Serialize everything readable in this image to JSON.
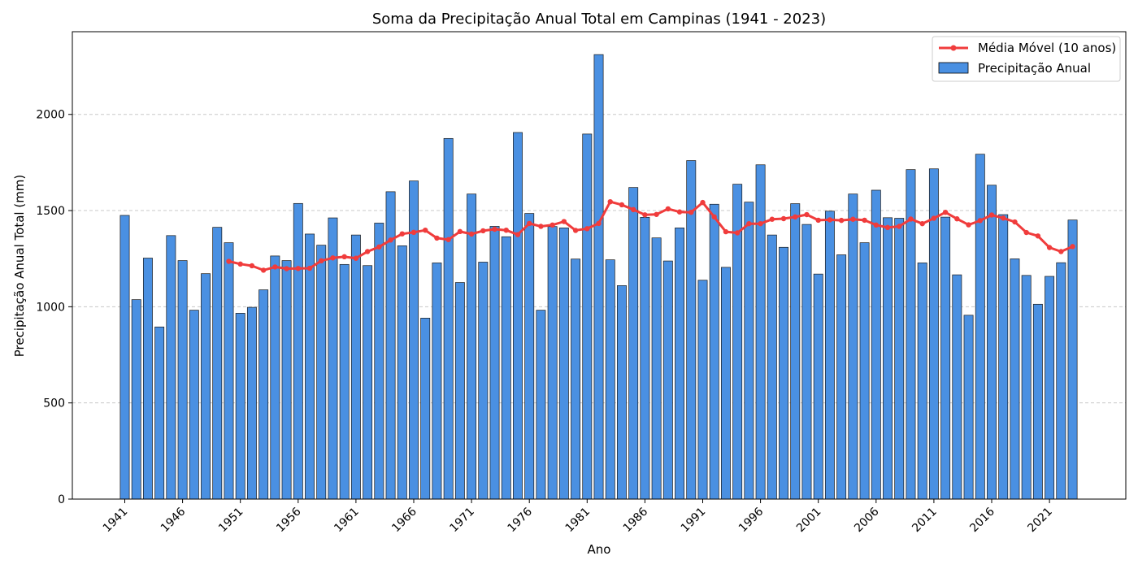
{
  "chart_data": {
    "type": "bar",
    "title": "Soma da Precipitação Anual Total em Campinas (1941 - 2023)",
    "xlabel": "Ano",
    "ylabel": "Precipitação Anual Total (mm)",
    "ylim": [
      0,
      2430
    ],
    "yticks": [
      0,
      500,
      1000,
      1500,
      2000
    ],
    "xtick_labels": [
      "1941",
      "1946",
      "1951",
      "1956",
      "1961",
      "1966",
      "1971",
      "1976",
      "1981",
      "1986",
      "1991",
      "1996",
      "2001",
      "2006",
      "2011",
      "2016",
      "2021"
    ],
    "grid": "horizontal-dashed",
    "legend_position": "top-right",
    "x": [
      1941,
      1942,
      1943,
      1944,
      1945,
      1946,
      1947,
      1948,
      1949,
      1950,
      1951,
      1952,
      1953,
      1954,
      1955,
      1956,
      1957,
      1958,
      1959,
      1960,
      1961,
      1962,
      1963,
      1964,
      1965,
      1966,
      1967,
      1968,
      1969,
      1970,
      1971,
      1972,
      1973,
      1974,
      1975,
      1976,
      1977,
      1978,
      1979,
      1980,
      1981,
      1982,
      1983,
      1984,
      1985,
      1986,
      1987,
      1988,
      1989,
      1990,
      1991,
      1992,
      1993,
      1994,
      1995,
      1996,
      1997,
      1998,
      1999,
      2000,
      2001,
      2002,
      2003,
      2004,
      2005,
      2006,
      2007,
      2008,
      2009,
      2010,
      2011,
      2012,
      2013,
      2014,
      2015,
      2016,
      2017,
      2018,
      2019,
      2020,
      2021,
      2022,
      2023
    ],
    "series": [
      {
        "name": "Precipitação Anual",
        "type": "bar",
        "color": "#4a90e2",
        "values": [
          1475,
          1037,
          1253,
          895,
          1370,
          1240,
          982,
          1172,
          1413,
          1333,
          966,
          997,
          1088,
          1264,
          1240,
          1537,
          1378,
          1320,
          1462,
          1220,
          1373,
          1214,
          1435,
          1598,
          1317,
          1654,
          941,
          1228,
          1875,
          1126,
          1586,
          1232,
          1418,
          1364,
          1906,
          1485,
          982,
          1417,
          1410,
          1248,
          1898,
          2311,
          1244,
          1110,
          1620,
          1465,
          1358,
          1238,
          1410,
          1760,
          1138,
          1533,
          1205,
          1637,
          1544,
          1738,
          1373,
          1309,
          1536,
          1428,
          1170,
          1497,
          1270,
          1586,
          1333,
          1606,
          1463,
          1460,
          1713,
          1228,
          1717,
          1466,
          1166,
          956,
          1793,
          1632,
          1479,
          1249,
          1163,
          1013,
          1158,
          1229,
          1451
        ]
      },
      {
        "name": "Média Móvel (10 anos)",
        "type": "line",
        "color": "#f03c3c",
        "values": [
          null,
          null,
          null,
          null,
          null,
          null,
          null,
          null,
          null,
          1236,
          1222,
          1213,
          1190,
          1207,
          1198,
          1199,
          1200,
          1239,
          1254,
          1260,
          1252,
          1287,
          1311,
          1347,
          1379,
          1387,
          1398,
          1357,
          1349,
          1391,
          1378,
          1395,
          1403,
          1398,
          1375,
          1433,
          1418,
          1425,
          1443,
          1397,
          1406,
          1433,
          1546,
          1530,
          1505,
          1478,
          1480,
          1509,
          1493,
          1491,
          1542,
          1467,
          1390,
          1384,
          1432,
          1432,
          1455,
          1458,
          1467,
          1479,
          1450,
          1452,
          1449,
          1455,
          1450,
          1425,
          1412,
          1418,
          1456,
          1432,
          1460,
          1491,
          1457,
          1426,
          1448,
          1477,
          1461,
          1441,
          1386,
          1368,
          1308,
          1287,
          1313
        ]
      }
    ]
  }
}
